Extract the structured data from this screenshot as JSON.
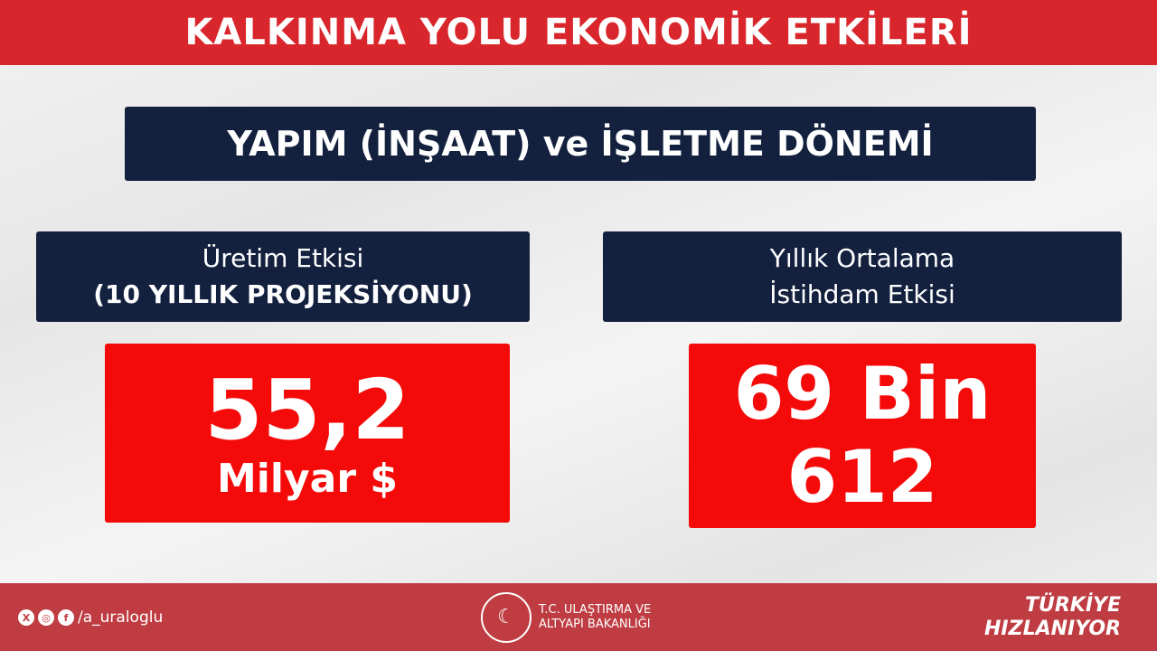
{
  "title": "KALKINMA YOLU EKONOMİK ETKİLERİ",
  "subtitle": "YAPIM (İNŞAAT) ve İŞLETME DÖNEMİ",
  "left": {
    "label_line1": "Üretim Etkisi",
    "label_line2": "(10 YILLIK PROJEKSİYONU)",
    "value": "55,2",
    "unit": "Milyar $"
  },
  "right": {
    "label_line1": "Yıllık Ortalama",
    "label_line2": "İstihdam Etkisi",
    "value_line1": "69 Bin",
    "value_line2": "612"
  },
  "footer": {
    "handle": "/a_uraloglu",
    "icons": [
      "x-icon",
      "instagram-icon",
      "facebook-icon"
    ],
    "ministry_line1": "T.C. ULAŞTIRMA VE",
    "ministry_line2": "ALTYAPI BAKANLIĞI",
    "slogan_line1": "TÜRKİYE",
    "slogan_line2": "HIZLANIYOR"
  },
  "colors": {
    "header_red": "#d8262c",
    "navy": "#13213f",
    "value_red": "#f50a0a",
    "footer_red": "#bf3d42"
  }
}
